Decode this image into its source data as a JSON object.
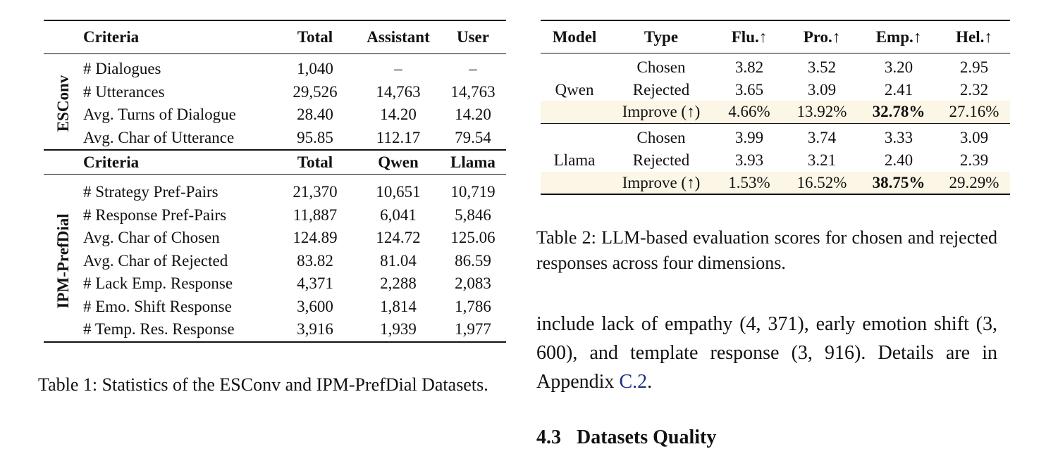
{
  "table1": {
    "header": [
      "Criteria",
      "Total",
      "Assistant",
      "User"
    ],
    "group1_label": "ESConv",
    "group1_rows": [
      [
        "# Dialogues",
        "1,040",
        "–",
        "–"
      ],
      [
        "# Utterances",
        "29,526",
        "14,763",
        "14,763"
      ],
      [
        "Avg. Turns of Dialogue",
        "28.40",
        "14.20",
        "14.20"
      ],
      [
        "Avg. Char of Utterance",
        "95.85",
        "112.17",
        "79.54"
      ]
    ],
    "header2": [
      "Criteria",
      "Total",
      "Qwen",
      "Llama"
    ],
    "group2_label": "IPM-PrefDial",
    "group2_rows": [
      [
        "# Strategy Pref-Pairs",
        "21,370",
        "10,651",
        "10,719"
      ],
      [
        "# Response Pref-Pairs",
        "11,887",
        "6,041",
        "5,846"
      ],
      [
        "Avg. Char of Chosen",
        "124.89",
        "124.72",
        "125.06"
      ],
      [
        "Avg. Char of Rejected",
        "83.82",
        "81.04",
        "86.59"
      ],
      [
        "# Lack Emp. Response",
        "4,371",
        "2,288",
        "2,083"
      ],
      [
        "# Emo. Shift Response",
        "3,600",
        "1,814",
        "1,786"
      ],
      [
        "# Temp. Res. Response",
        "3,916",
        "1,939",
        "1,977"
      ]
    ],
    "caption": "Table 1: Statistics of the ESConv and IPM-PrefDial Datasets."
  },
  "table2": {
    "header": [
      "Model",
      "Type",
      "Flu.↑",
      "Pro.↑",
      "Emp.↑",
      "Hel.↑"
    ],
    "groups": [
      {
        "model": "Qwen",
        "rows": [
          [
            "Chosen",
            "3.82",
            "3.52",
            "3.20",
            "2.95"
          ],
          [
            "Rejected",
            "3.65",
            "3.09",
            "2.41",
            "2.32"
          ],
          [
            "Improve (↑)",
            "4.66%",
            "13.92%",
            "32.78%",
            "27.16%"
          ]
        ]
      },
      {
        "model": "Llama",
        "rows": [
          [
            "Chosen",
            "3.99",
            "3.74",
            "3.33",
            "3.09"
          ],
          [
            "Rejected",
            "3.93",
            "3.21",
            "2.40",
            "2.39"
          ],
          [
            "Improve (↑)",
            "1.53%",
            "16.52%",
            "38.75%",
            "29.29%"
          ]
        ]
      }
    ],
    "caption": "Table 2: LLM-based evaluation scores for chosen and rejected responses across four dimensions.",
    "highlight_color": "#fcf6e6"
  },
  "paragraph": {
    "text": "include lack of empathy (4, 371), early emotion shift (3, 600), and template response (3, 916). Details are in Appendix ",
    "link": "C.2",
    "end": ".",
    "link_color": "#1a2f8a"
  },
  "section": {
    "number": "4.3",
    "title": "Datasets Quality"
  }
}
